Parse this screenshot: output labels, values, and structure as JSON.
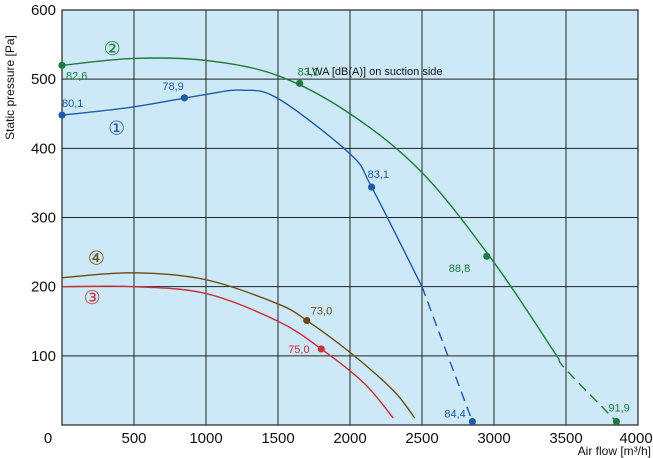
{
  "chart_data": {
    "type": "line",
    "xlabel": "Air flow [m³/h]",
    "ylabel": "Static pressure [Pa]",
    "xlim": [
      0,
      4000
    ],
    "ylim": [
      0,
      600
    ],
    "xticks": [
      "0",
      "500",
      "1000",
      "1500",
      "2000",
      "2500",
      "3000",
      "3500",
      "4000"
    ],
    "yticks": [
      "100",
      "200",
      "300",
      "400",
      "500",
      "600"
    ],
    "grid": true,
    "background": "#cde9f7",
    "annotation": "LWA [dB(A)] on suction side",
    "series": [
      {
        "name": "②",
        "color": "#1e7a3e",
        "curve": [
          [
            0,
            520
          ],
          [
            500,
            530
          ],
          [
            1000,
            527
          ],
          [
            1500,
            505
          ],
          [
            2000,
            450
          ],
          [
            2500,
            365
          ],
          [
            3000,
            235
          ],
          [
            3500,
            80
          ],
          [
            3850,
            5
          ]
        ],
        "dashed_from": 3450,
        "points": [
          {
            "x": 0,
            "y": 520,
            "label": "82,6"
          },
          {
            "x": 1650,
            "y": 494,
            "label": "83,1"
          },
          {
            "x": 2950,
            "y": 244,
            "label": "88,8"
          },
          {
            "x": 3850,
            "y": 5,
            "label": "91,9"
          }
        ]
      },
      {
        "name": "①",
        "color": "#1f5aa6",
        "curve": [
          [
            0,
            448
          ],
          [
            500,
            460
          ],
          [
            1000,
            478
          ],
          [
            1250,
            484
          ],
          [
            1500,
            472
          ],
          [
            2000,
            392
          ],
          [
            2150,
            344
          ],
          [
            2500,
            200
          ],
          [
            2850,
            5
          ]
        ],
        "dashed_from": 2500,
        "points": [
          {
            "x": 0,
            "y": 448,
            "label": "80,1"
          },
          {
            "x": 850,
            "y": 473,
            "label": "78,9"
          },
          {
            "x": 2150,
            "y": 344,
            "label": "83,1"
          },
          {
            "x": 2850,
            "y": 5,
            "label": "84,4"
          }
        ]
      },
      {
        "name": "④",
        "color": "#6b4a12",
        "curve": [
          [
            0,
            213
          ],
          [
            500,
            220
          ],
          [
            1000,
            210
          ],
          [
            1500,
            175
          ],
          [
            1700,
            151
          ],
          [
            2000,
            105
          ],
          [
            2300,
            50
          ],
          [
            2450,
            10
          ]
        ],
        "points": [
          {
            "x": 1700,
            "y": 151,
            "label": "73,0"
          }
        ]
      },
      {
        "name": "③",
        "color": "#c8303c",
        "curve": [
          [
            0,
            200
          ],
          [
            500,
            200
          ],
          [
            1000,
            190
          ],
          [
            1500,
            150
          ],
          [
            1800,
            110
          ],
          [
            2100,
            60
          ],
          [
            2300,
            10
          ]
        ],
        "points": [
          {
            "x": 1800,
            "y": 110,
            "label": "75,0"
          }
        ]
      }
    ]
  }
}
